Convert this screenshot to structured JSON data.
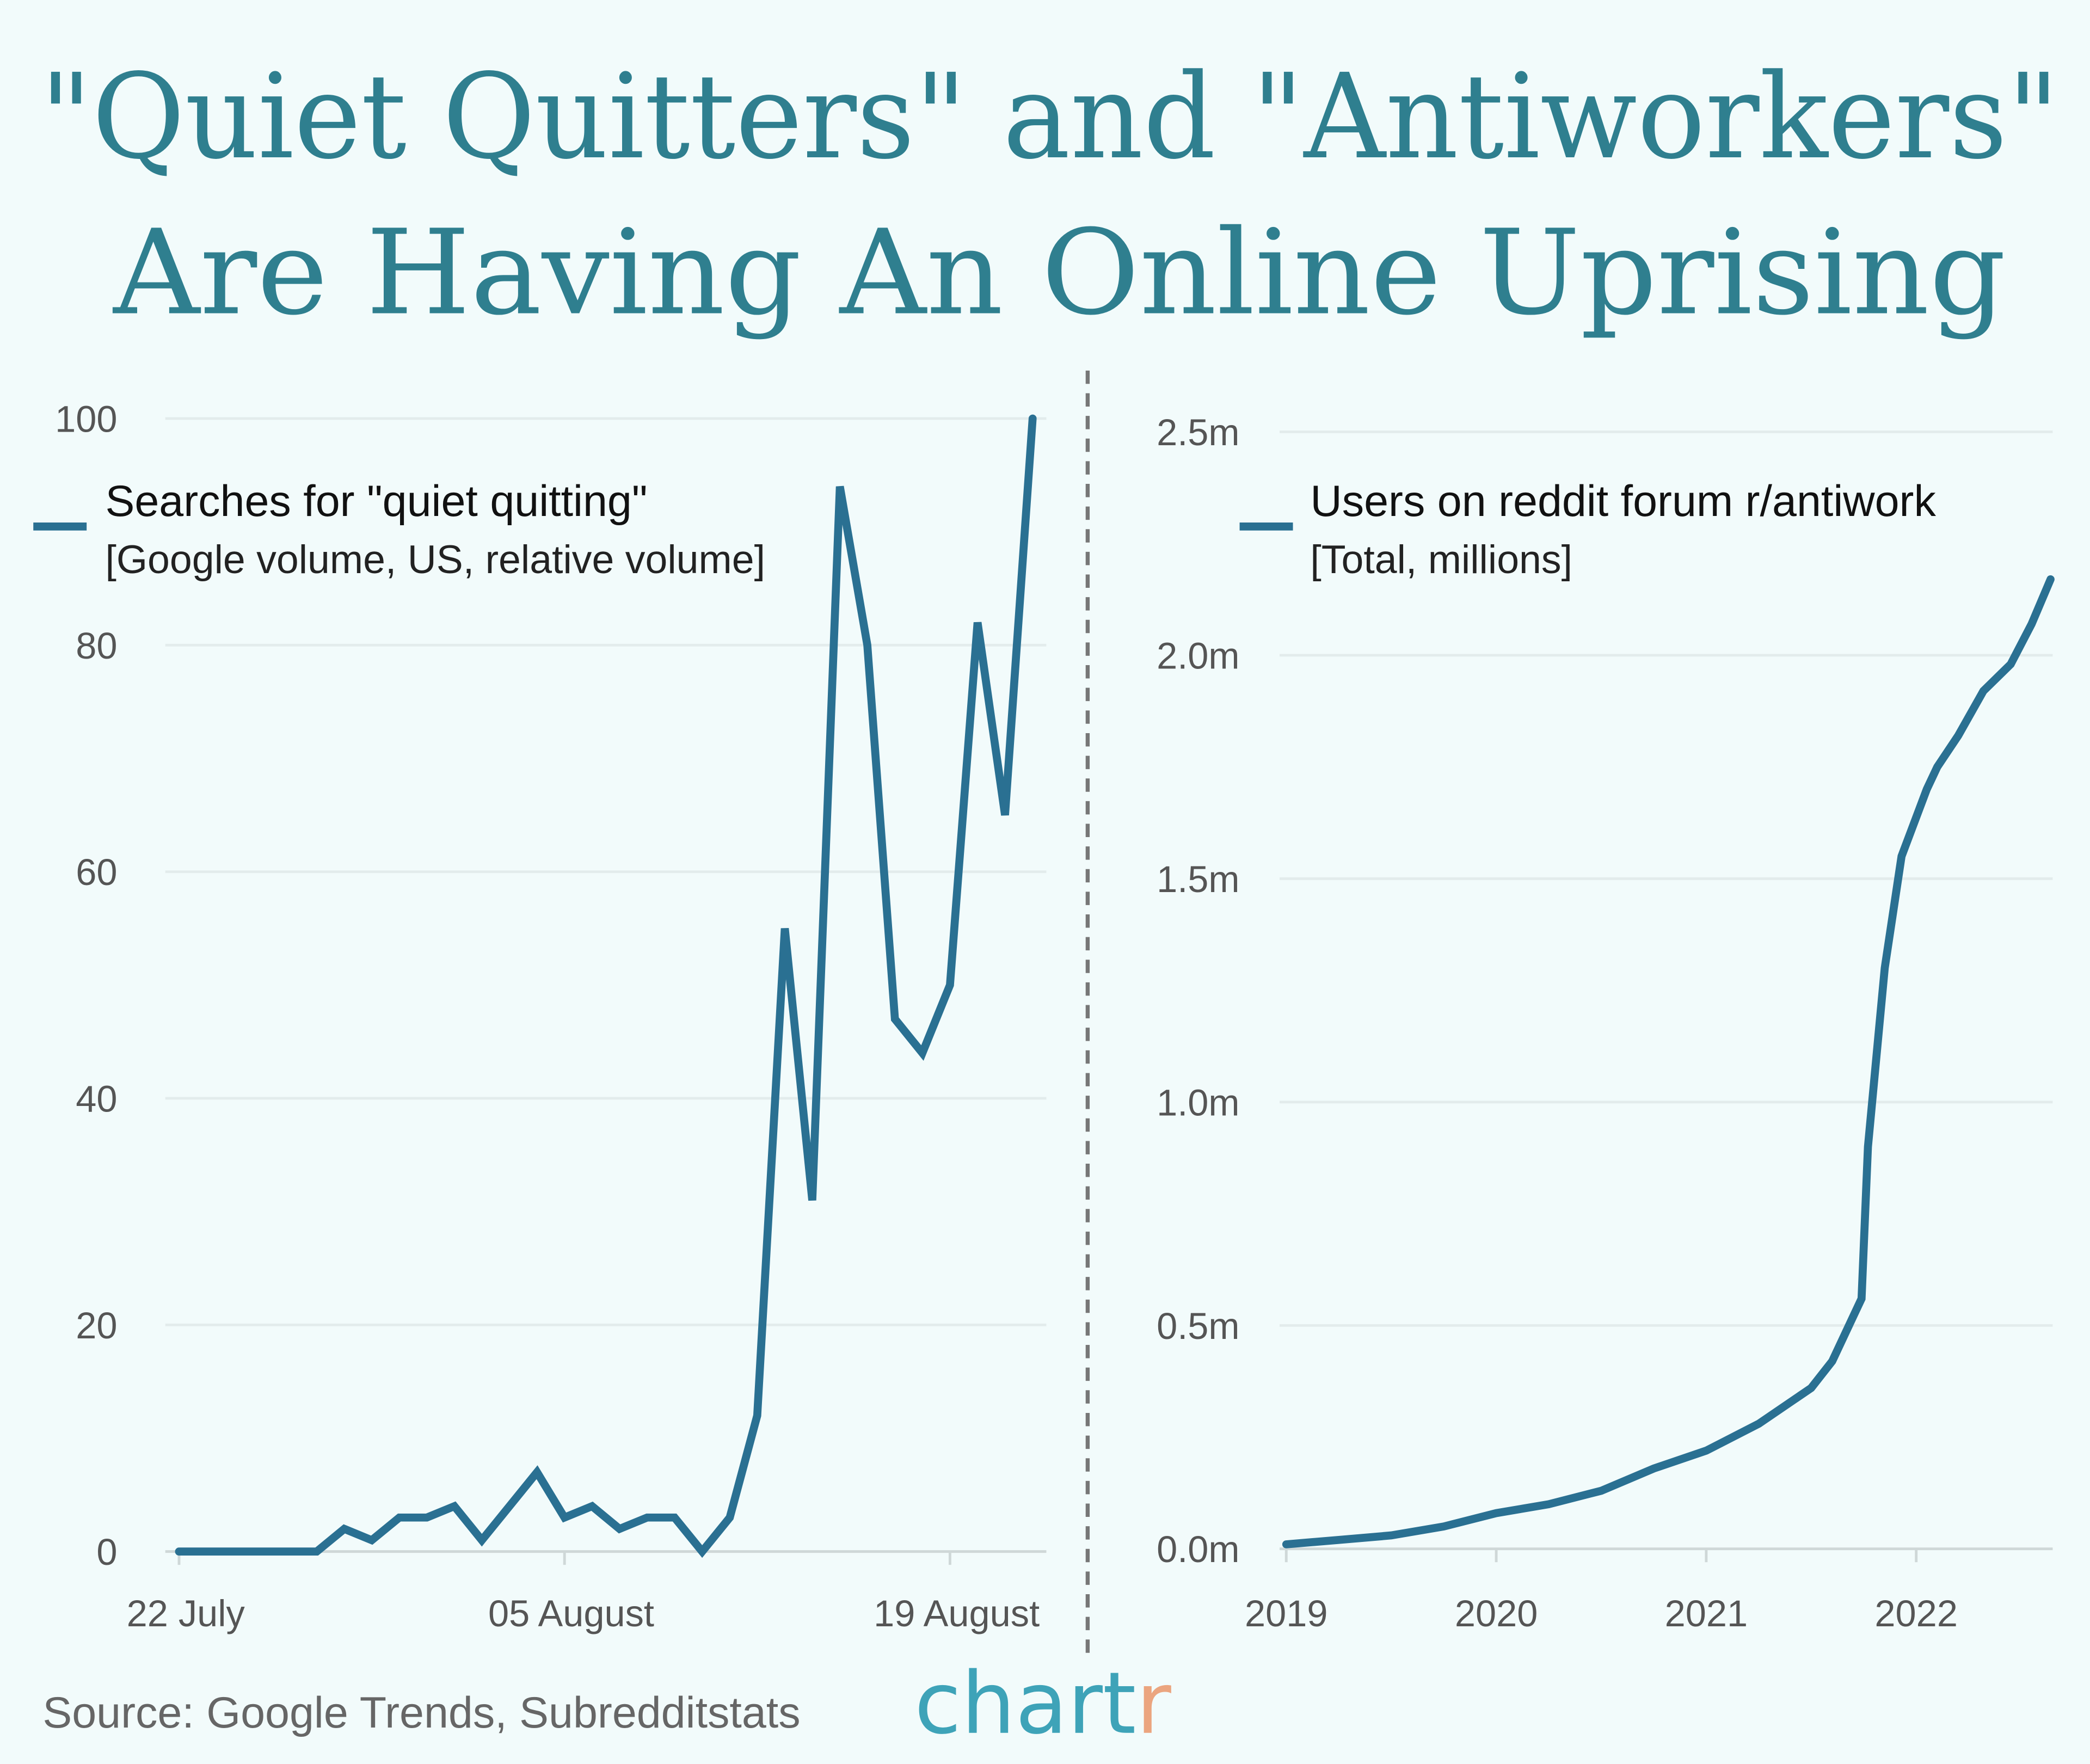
{
  "title": {
    "line1": "\"Quiet Quitters\" and \"Antiworkers\"",
    "line2": "Are Having An Online Uprising"
  },
  "colors": {
    "line": "#2a7092",
    "title": "#2f7f8f",
    "logo_main": "#3ea3b8",
    "logo_accent": "#eba57f",
    "background": "#f2fbfb"
  },
  "source": "Source: Google Trends, Subredditstats",
  "logo": {
    "main": "chart",
    "accent": "r"
  },
  "chart_data": [
    {
      "type": "line",
      "title": "Searches for \"quiet quitting\"",
      "subtitle": "[Google volume, US, relative volume]",
      "xlabel": "",
      "ylabel": "",
      "x_unit": "days since 22 July",
      "x": [
        0,
        1,
        2,
        3,
        4,
        5,
        6,
        7,
        8,
        9,
        10,
        11,
        12,
        13,
        14,
        15,
        16,
        17,
        18,
        19,
        20,
        21,
        22,
        23,
        24,
        25,
        26,
        27,
        28,
        29,
        30,
        31
      ],
      "values": [
        0,
        0,
        0,
        0,
        0,
        0,
        2,
        1,
        3,
        3,
        4,
        1,
        4,
        7,
        3,
        4,
        2,
        3,
        3,
        0,
        3,
        12,
        55,
        31,
        94,
        80,
        47,
        44,
        50,
        82,
        65,
        100
      ],
      "xticks": [
        {
          "v": 0,
          "label": "22 July"
        },
        {
          "v": 14,
          "label": "05 August"
        },
        {
          "v": 28,
          "label": "19 August"
        }
      ],
      "yticks": [
        {
          "v": 0,
          "label": "0"
        },
        {
          "v": 20,
          "label": "20"
        },
        {
          "v": 40,
          "label": "40"
        },
        {
          "v": 60,
          "label": "60"
        },
        {
          "v": 80,
          "label": "80"
        },
        {
          "v": 100,
          "label": "100"
        }
      ],
      "xlim": [
        -0.5,
        31.5
      ],
      "ylim": [
        0,
        100
      ],
      "grid": true,
      "legend": "top-left"
    },
    {
      "type": "line",
      "title": "Users on reddit forum r/antiwork",
      "subtitle": "[Total, millions]",
      "xlabel": "",
      "ylabel": "",
      "x": [
        2019,
        2019.25,
        2019.5,
        2019.75,
        2020,
        2020.25,
        2020.5,
        2020.75,
        2021,
        2021.25,
        2021.5,
        2021.6,
        2021.7,
        2021.74,
        2021.77,
        2021.85,
        2021.93,
        2022.05,
        2022.1,
        2022.2,
        2022.32,
        2022.45,
        2022.55,
        2022.64
      ],
      "values": [
        0.01,
        0.02,
        0.03,
        0.05,
        0.08,
        0.1,
        0.13,
        0.18,
        0.22,
        0.28,
        0.36,
        0.42,
        0.52,
        0.56,
        0.9,
        1.3,
        1.55,
        1.7,
        1.75,
        1.82,
        1.92,
        1.98,
        2.07,
        2.17
      ],
      "xticks": [
        {
          "v": 2019,
          "label": "2019"
        },
        {
          "v": 2020,
          "label": "2020"
        },
        {
          "v": 2021,
          "label": "2021"
        },
        {
          "v": 2022,
          "label": "2022"
        }
      ],
      "yticks": [
        {
          "v": 0,
          "label": "0.0m"
        },
        {
          "v": 0.5,
          "label": "0.5m"
        },
        {
          "v": 1.0,
          "label": "1.0m"
        },
        {
          "v": 1.5,
          "label": "1.5m"
        },
        {
          "v": 2.0,
          "label": "2.0m"
        },
        {
          "v": 2.5,
          "label": "2.5m"
        }
      ],
      "xlim": [
        2019,
        2022.65
      ],
      "ylim": [
        0,
        2.5
      ],
      "grid": true,
      "legend": "top-left"
    }
  ]
}
